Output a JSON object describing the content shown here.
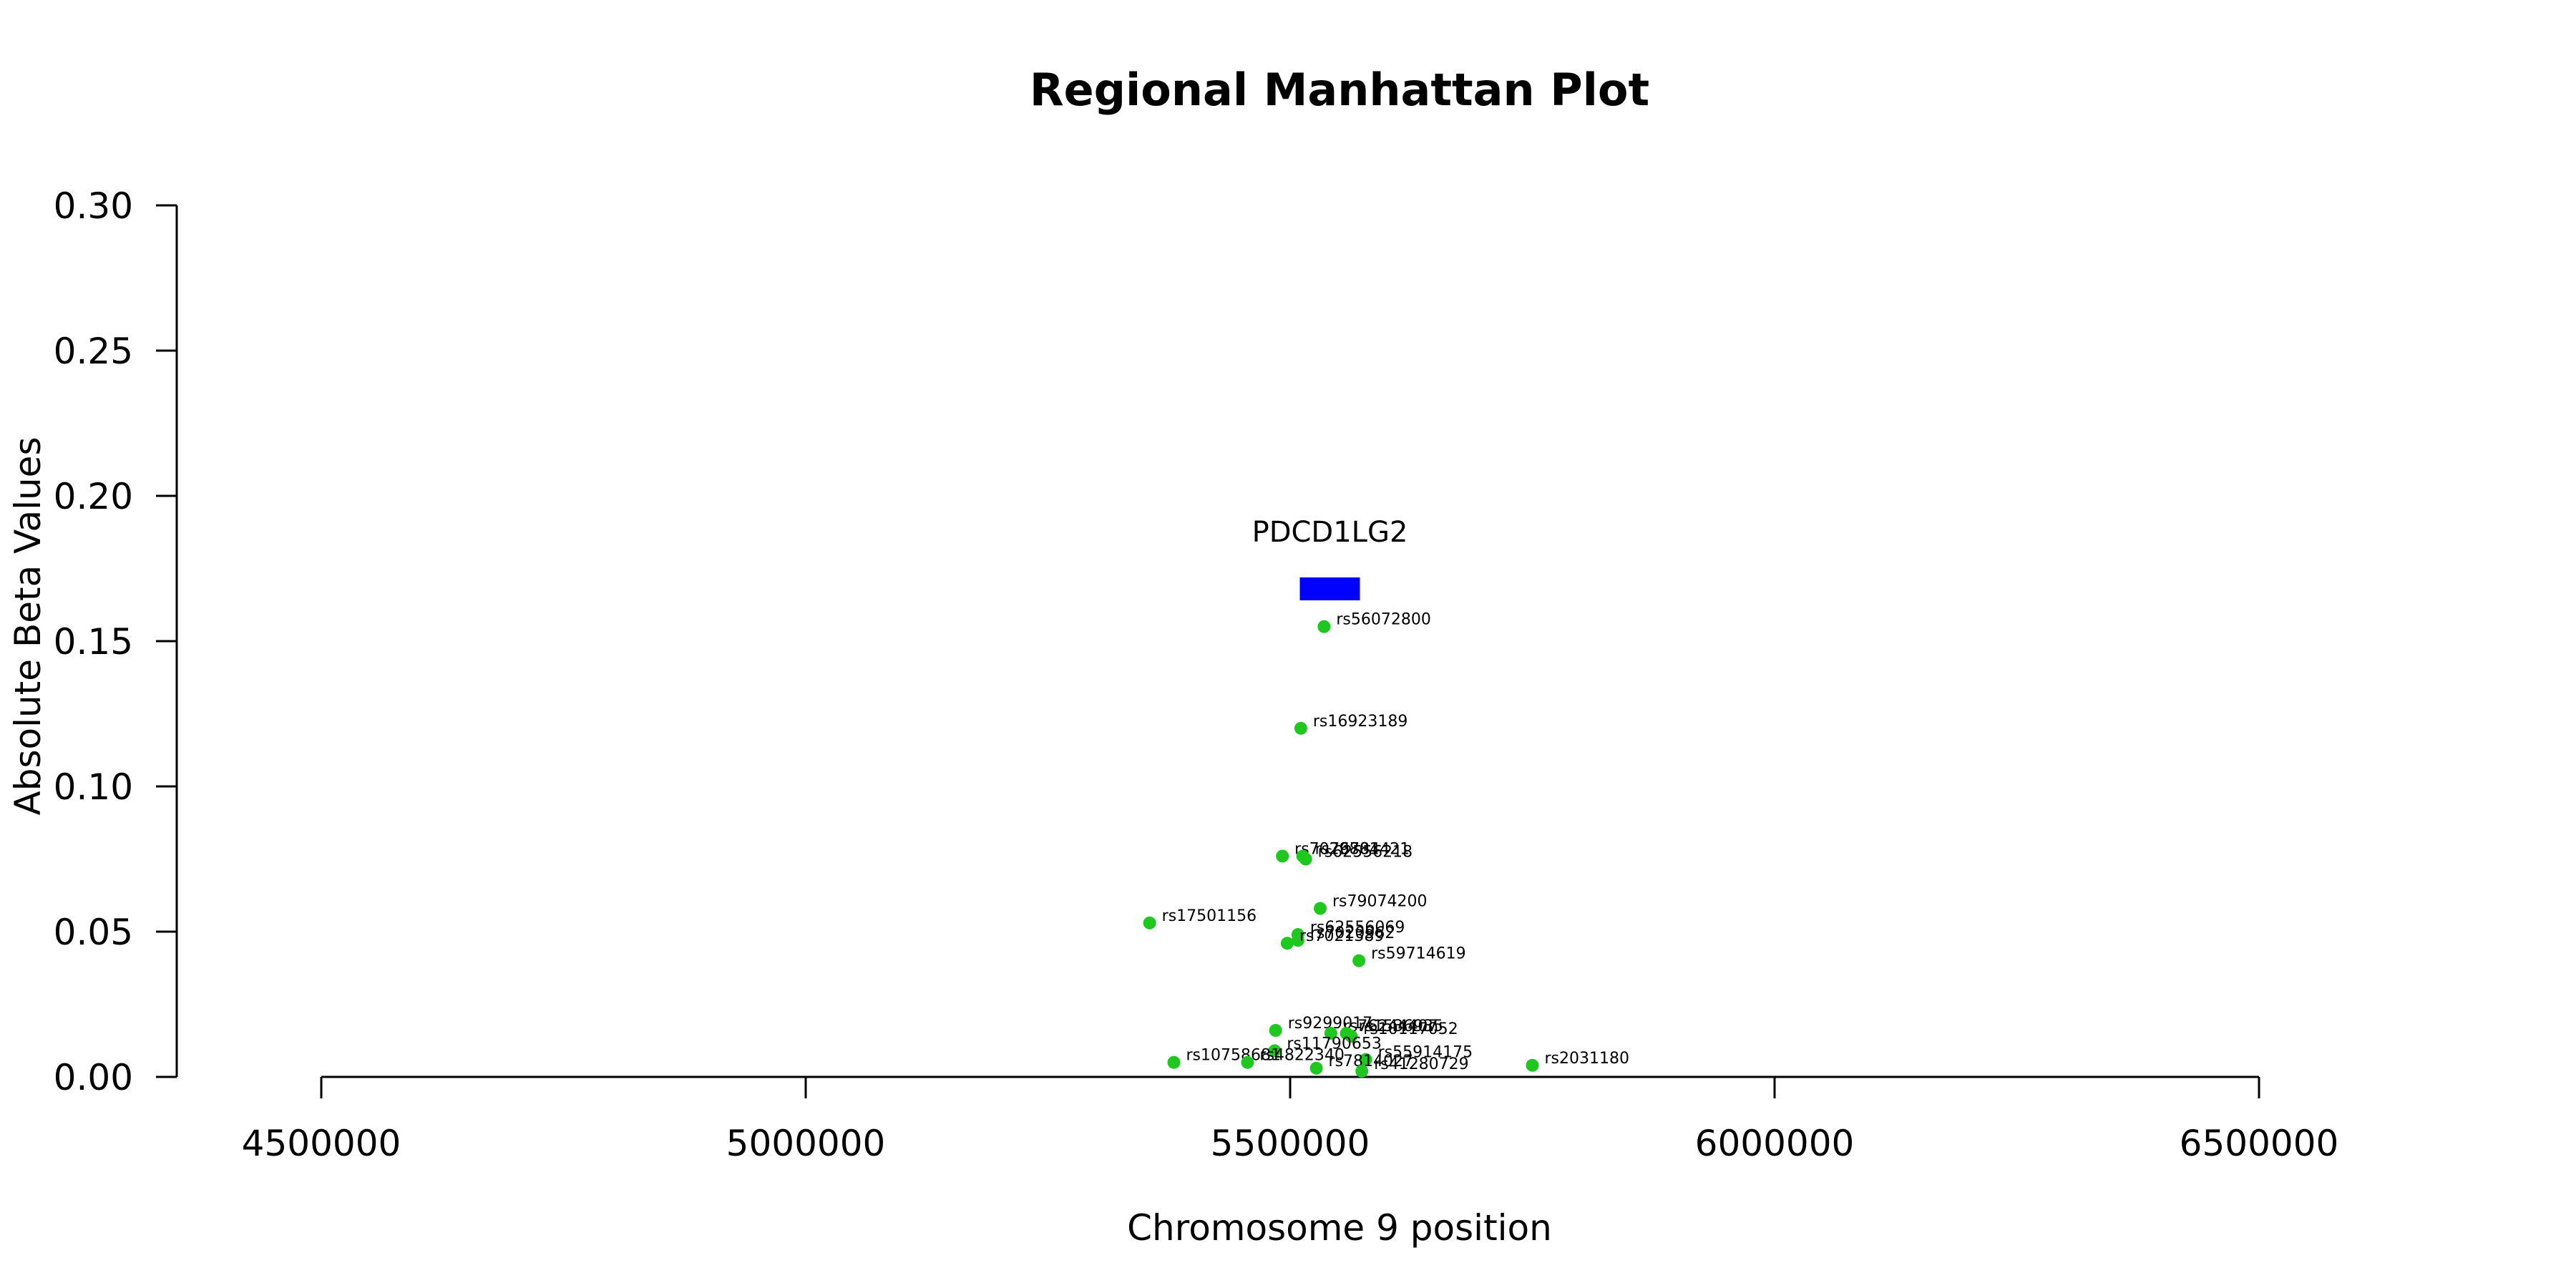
{
  "chart_data": {
    "type": "scatter",
    "title": "Regional Manhattan Plot",
    "xlabel": "Chromosome 9 position",
    "ylabel": "Absolute Beta Values",
    "xlim": [
      4350000,
      6650000
    ],
    "ylim": [
      0,
      0.3
    ],
    "x_ticks": [
      4500000,
      5000000,
      5500000,
      6000000,
      6500000
    ],
    "x_tick_labels": [
      "4500000",
      "5000000",
      "5500000",
      "6000000",
      "6500000"
    ],
    "y_ticks": [
      0.0,
      0.05,
      0.1,
      0.15,
      0.2,
      0.25,
      0.3
    ],
    "y_tick_labels": [
      "0.00",
      "0.05",
      "0.10",
      "0.15",
      "0.20",
      "0.25",
      "0.30"
    ],
    "grid": false,
    "point_color": "#1ec81e",
    "gene": {
      "name": "PDCD1LG2",
      "start": 5510000,
      "end": 5572000,
      "y": 0.168,
      "color": "#0000ff"
    },
    "points": [
      {
        "rsid": "rs56072800",
        "x": 5535000,
        "y": 0.155
      },
      {
        "rsid": "rs16923189",
        "x": 5511000,
        "y": 0.12
      },
      {
        "rsid": "rs7029801",
        "x": 5492000,
        "y": 0.076
      },
      {
        "rsid": "rs76784421",
        "x": 5513000,
        "y": 0.076
      },
      {
        "rsid": "rs62556218",
        "x": 5516000,
        "y": 0.075
      },
      {
        "rsid": "rs79074200",
        "x": 5531000,
        "y": 0.058
      },
      {
        "rsid": "rs17501156",
        "x": 5355000,
        "y": 0.053
      },
      {
        "rsid": "rs62556069",
        "x": 5508000,
        "y": 0.049
      },
      {
        "rsid": "rs7020962",
        "x": 5508000,
        "y": 0.047
      },
      {
        "rsid": "rs7021389",
        "x": 5497000,
        "y": 0.046
      },
      {
        "rsid": "rs59714619",
        "x": 5571000,
        "y": 0.04
      },
      {
        "rsid": "rs9299017",
        "x": 5485000,
        "y": 0.016
      },
      {
        "rsid": "rs76244407",
        "x": 5542000,
        "y": 0.015
      },
      {
        "rsid": "rs1536935",
        "x": 5558000,
        "y": 0.015
      },
      {
        "rsid": "rs10117052",
        "x": 5563000,
        "y": 0.014
      },
      {
        "rsid": "rs11790653",
        "x": 5484000,
        "y": 0.009
      },
      {
        "rsid": "rs55914175",
        "x": 5578000,
        "y": 0.006
      },
      {
        "rsid": "rs10758681",
        "x": 5380000,
        "y": 0.005
      },
      {
        "rsid": "rs4822340",
        "x": 5456000,
        "y": 0.005
      },
      {
        "rsid": "rs7814027",
        "x": 5527000,
        "y": 0.003
      },
      {
        "rsid": "rs41280729",
        "x": 5574000,
        "y": 0.002
      },
      {
        "rsid": "rs2031180",
        "x": 5750000,
        "y": 0.004
      }
    ]
  }
}
